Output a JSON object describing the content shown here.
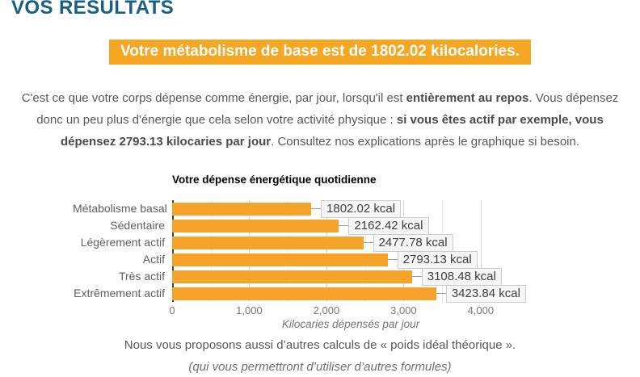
{
  "header": {
    "title": "VOS RESULTATS"
  },
  "banner": {
    "text": "Votre métabolisme de base est de 1802.02 kilocalories.",
    "bg_color": "#f5a623",
    "text_color": "#ffffff"
  },
  "intro": {
    "segments": [
      {
        "text": "C'est ce que votre corps dépense comme énergie, par jour, lorsqu'il est ",
        "bold": false
      },
      {
        "text": "entièrement au repos",
        "bold": true
      },
      {
        "text": ". Vous dépensez donc un peu plus d'énergie que cela selon votre activité physique : ",
        "bold": false
      },
      {
        "text": "si vous êtes actif par exemple, vous dépensez 2793.13 kilocaries par jour",
        "bold": true
      },
      {
        "text": ". Consultez nos explications après le graphique si besoin.",
        "bold": false
      }
    ]
  },
  "chart_data": {
    "type": "bar",
    "orientation": "horizontal",
    "title": "Votre dépense énergétique quotidienne",
    "categories": [
      "Métabolisme basal",
      "Sédentaire",
      "Légèrement actif",
      "Actif",
      "Très actif",
      "Extrêmement actif"
    ],
    "values": [
      1802.02,
      2162.42,
      2477.78,
      2793.13,
      3108.48,
      3423.84
    ],
    "value_labels": [
      "1802.02 kcal",
      "2162.42 kcal",
      "2477.78 kcal",
      "2793.13 kcal",
      "3108.48 kcal",
      "3423.84 kcal"
    ],
    "xlabel": "Kilocaries dépensés par jour",
    "xlim": [
      0,
      4630
    ],
    "xticks": [
      0,
      1000,
      2000,
      3000,
      4000
    ],
    "xtick_labels": [
      "0",
      "1,000",
      "2,000",
      "3,000",
      "4,000"
    ],
    "minor_grid_step": 500,
    "grid": true,
    "legend": "none",
    "bar_color": "#f5a32b"
  },
  "footer": {
    "line1": "Nous vous proposons aussi d’autres calculs de « poids idéal théorique ».",
    "line2": "(qui vous permettront d’utiliser d’autres formules)"
  },
  "colors": {
    "heading": "#1a5f80",
    "accent_orange": "#f5a623",
    "bar_orange": "#f5a32b",
    "body_text": "#57585a"
  }
}
